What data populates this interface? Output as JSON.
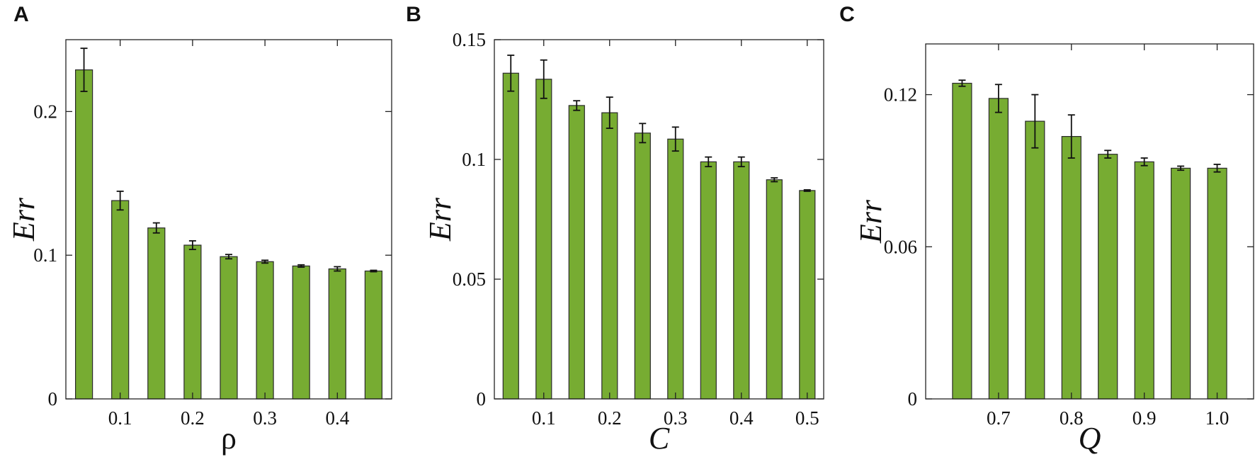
{
  "colors": {
    "bar": "#77ac32",
    "axis": "#222222"
  },
  "chart_data": [
    {
      "type": "bar",
      "panel_label": "A",
      "xlabel": "ρ",
      "xlabel_italic": false,
      "ylabel": "Err",
      "ylim": [
        0,
        0.25
      ],
      "x": [
        0.05,
        0.1,
        0.15,
        0.2,
        0.25,
        0.3,
        0.35,
        0.4,
        0.45
      ],
      "xlim": [
        0.025,
        0.475
      ],
      "values": [
        0.229,
        0.138,
        0.119,
        0.107,
        0.099,
        0.0955,
        0.0925,
        0.0905,
        0.089
      ],
      "errors": [
        0.015,
        0.0065,
        0.0035,
        0.003,
        0.0015,
        0.001,
        0.0008,
        0.0015,
        0.0005
      ],
      "yticks": [
        0,
        0.1,
        0.2
      ],
      "ytick_labels": [
        "0",
        "0.1",
        "0.2"
      ],
      "xticks": [
        0.1,
        0.2,
        0.3,
        0.4
      ],
      "xtick_labels": [
        "0.1",
        "0.2",
        "0.3",
        "0.4"
      ],
      "grid": false,
      "legend": "none"
    },
    {
      "type": "bar",
      "panel_label": "B",
      "xlabel": "C",
      "xlabel_italic": true,
      "ylabel": "Err",
      "ylim": [
        0,
        0.15
      ],
      "x": [
        0.05,
        0.1,
        0.15,
        0.2,
        0.25,
        0.3,
        0.35,
        0.4,
        0.45,
        0.5
      ],
      "xlim": [
        0.025,
        0.525
      ],
      "values": [
        0.136,
        0.1335,
        0.1225,
        0.1195,
        0.111,
        0.1085,
        0.099,
        0.099,
        0.0915,
        0.087
      ],
      "errors": [
        0.0075,
        0.008,
        0.002,
        0.0065,
        0.004,
        0.005,
        0.002,
        0.002,
        0.0008,
        0.0003
      ],
      "yticks": [
        0,
        0.05,
        0.1,
        0.15
      ],
      "ytick_labels": [
        "0",
        "0.05",
        "0.1",
        "0.15"
      ],
      "xticks": [
        0.1,
        0.2,
        0.3,
        0.4,
        0.5
      ],
      "xtick_labels": [
        "0.1",
        "0.2",
        "0.3",
        "0.4",
        "0.5"
      ],
      "grid": false,
      "legend": "none"
    },
    {
      "type": "bar",
      "panel_label": "C",
      "xlabel": "Q",
      "xlabel_italic": true,
      "ylabel": "Err",
      "ylim": [
        0,
        0.14
      ],
      "x": [
        0.65,
        0.7,
        0.75,
        0.8,
        0.85,
        0.9,
        0.95,
        1.0
      ],
      "xlim": [
        0.6,
        1.05
      ],
      "values": [
        0.1245,
        0.1185,
        0.1095,
        0.1035,
        0.0965,
        0.0935,
        0.091,
        0.091
      ],
      "errors": [
        0.0012,
        0.0055,
        0.0105,
        0.0085,
        0.0015,
        0.0015,
        0.0008,
        0.0015
      ],
      "yticks": [
        0,
        0.06,
        0.12
      ],
      "ytick_labels": [
        "0",
        "0.06",
        "0.12"
      ],
      "xticks": [
        0.7,
        0.8,
        0.9,
        1.0
      ],
      "xtick_labels": [
        "0.7",
        "0.8",
        "0.9",
        "1.0"
      ],
      "grid": false,
      "legend": "none"
    }
  ]
}
